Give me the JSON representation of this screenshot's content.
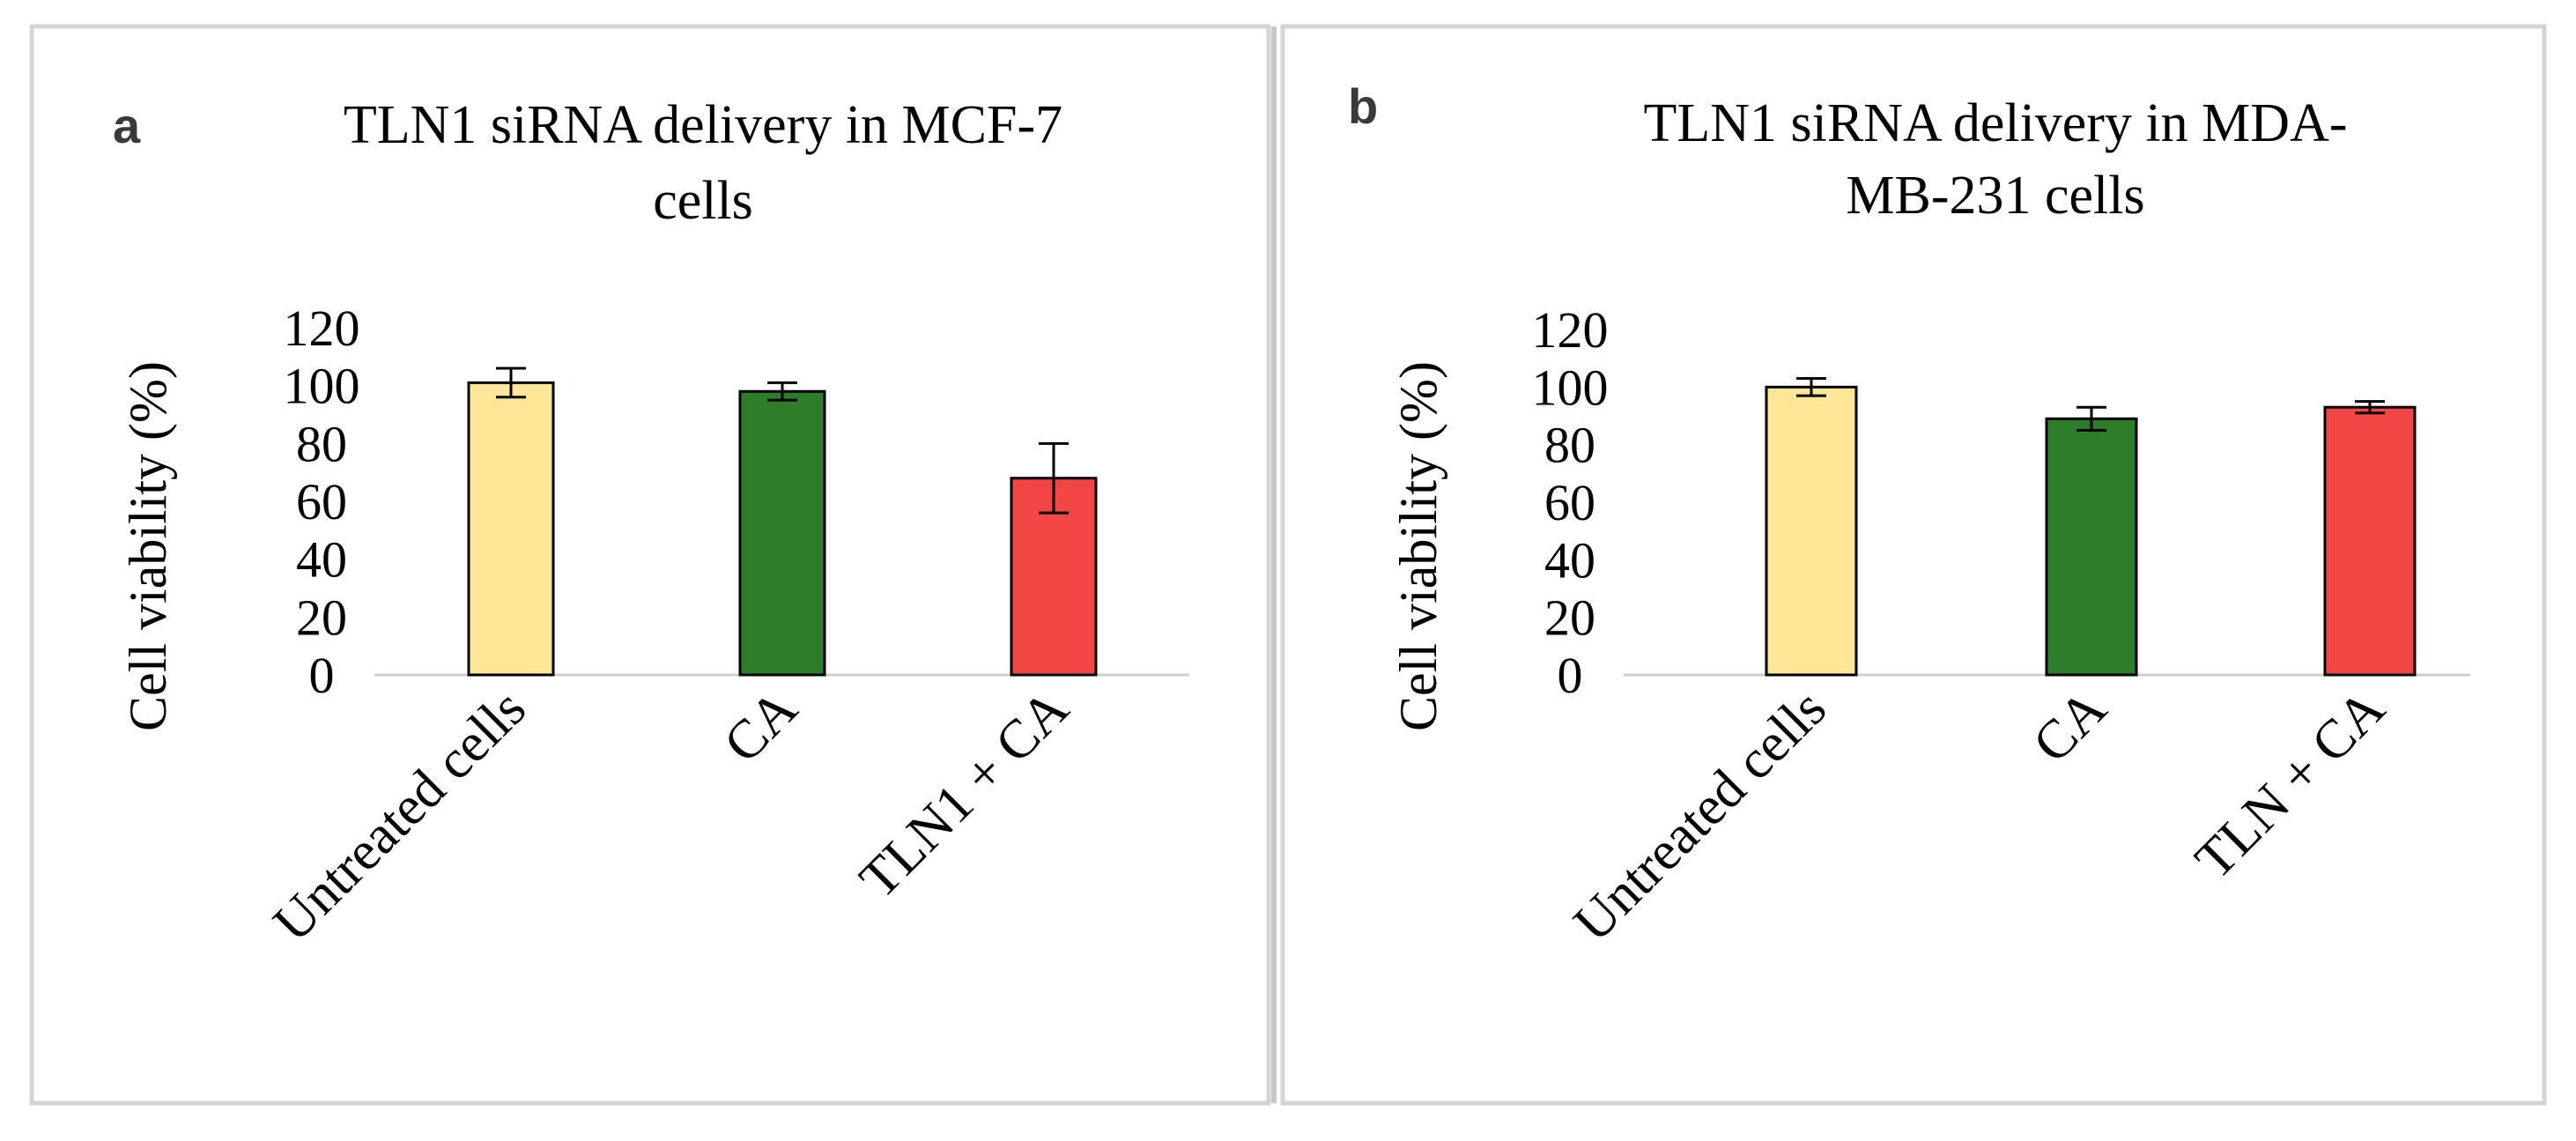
{
  "chart_data": [
    {
      "panel": "a",
      "type": "bar",
      "title_lines": [
        "TLN1 siRNA delivery in MCF-7",
        "cells"
      ],
      "ylabel": "Cell viability  (%)",
      "xlabel": "",
      "categories": [
        "Untreated cells",
        "CA",
        "TLN1  + CA"
      ],
      "values": [
        101,
        98,
        68
      ],
      "errors": [
        5,
        3,
        12
      ],
      "colors": [
        "#FFE699",
        "#2E7D2A",
        "#F24545"
      ],
      "ylim": [
        0,
        120
      ],
      "yticks": [
        0,
        20,
        40,
        60,
        80,
        100,
        120
      ],
      "grid": false
    },
    {
      "panel": "b",
      "type": "bar",
      "title_lines": [
        "TLN1 siRNA delivery in MDA-",
        "MB-231 cells"
      ],
      "ylabel": "Cell viability  (%)",
      "xlabel": "",
      "categories": [
        "Untreated cells",
        "CA",
        "TLN + CA"
      ],
      "values": [
        100,
        89,
        93
      ],
      "errors": [
        3,
        4,
        2
      ],
      "colors": [
        "#FFE699",
        "#2E7D2A",
        "#F24545"
      ],
      "ylim": [
        0,
        120
      ],
      "yticks": [
        0,
        20,
        40,
        60,
        80,
        100,
        120
      ],
      "grid": false
    }
  ]
}
